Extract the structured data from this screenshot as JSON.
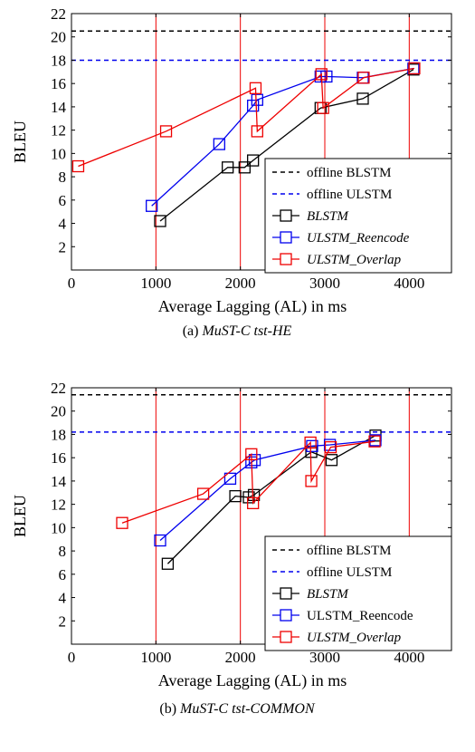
{
  "chart_data": [
    {
      "type": "line",
      "caption_prefix": "(a) ",
      "caption": "MuST-C tst-HE",
      "xlabel": "Average Lagging (AL) in ms",
      "ylabel": "BLEU",
      "xlim": [
        0,
        4500
      ],
      "ylim": [
        0,
        22
      ],
      "xticks": [
        0,
        1000,
        2000,
        3000,
        4000
      ],
      "yticks": [
        2,
        4,
        6,
        8,
        10,
        12,
        14,
        16,
        18,
        20,
        22
      ],
      "grid": false,
      "vertical_reference_lines_x": [
        1000,
        2000,
        3000,
        4000
      ],
      "legend_position": "bottom-right",
      "reference_lines": [
        {
          "name": "offline BLSTM",
          "y": 20.5,
          "color": "#000000",
          "dash": true
        },
        {
          "name": "offline ULSTM",
          "y": 18.0,
          "color": "#0000ee",
          "dash": true
        }
      ],
      "series": [
        {
          "name": "BLSTM",
          "italic": true,
          "color": "#000000",
          "x": [
            1050,
            1850,
            2050,
            2150,
            2950,
            3450,
            4050
          ],
          "y": [
            4.2,
            8.8,
            8.8,
            9.4,
            13.9,
            14.7,
            17.2
          ]
        },
        {
          "name": "ULSTM_Reencode",
          "italic": true,
          "color": "#0000ee",
          "x": [
            950,
            1750,
            2150,
            2200,
            2950,
            3020,
            3450,
            4050
          ],
          "y": [
            5.5,
            10.8,
            14.1,
            14.6,
            16.6,
            16.6,
            16.5,
            17.3
          ]
        },
        {
          "name": "ULSTM_Overlap",
          "italic": true,
          "color": "#ee0000",
          "x": [
            80,
            1120,
            2180,
            2200,
            2960,
            2980,
            3460,
            4060
          ],
          "y": [
            8.9,
            11.9,
            15.6,
            11.9,
            16.8,
            13.9,
            16.5,
            17.3
          ]
        }
      ]
    },
    {
      "type": "line",
      "caption_prefix": "(b) ",
      "caption": "MuST-C tst-COMMON",
      "xlabel": "Average Lagging (AL) in ms",
      "ylabel": "BLEU",
      "xlim": [
        0,
        4500
      ],
      "ylim": [
        0,
        22
      ],
      "xticks": [
        0,
        1000,
        2000,
        3000,
        4000
      ],
      "yticks": [
        2,
        4,
        6,
        8,
        10,
        12,
        14,
        16,
        18,
        20,
        22
      ],
      "grid": false,
      "vertical_reference_lines_x": [
        1000,
        2000,
        3000,
        4000
      ],
      "legend_position": "bottom-right",
      "reference_lines": [
        {
          "name": "offline BLSTM",
          "y": 21.4,
          "color": "#000000",
          "dash": true
        },
        {
          "name": "offline ULSTM",
          "y": 18.2,
          "color": "#0000ee",
          "dash": true
        }
      ],
      "series": [
        {
          "name": "BLSTM",
          "italic": true,
          "color": "#000000",
          "x": [
            1140,
            1940,
            2100,
            2160,
            2840,
            3080,
            3600
          ],
          "y": [
            6.9,
            12.7,
            12.6,
            12.8,
            16.5,
            15.8,
            17.9
          ]
        },
        {
          "name": "ULSTM_Reencode",
          "italic": false,
          "color": "#0000ee",
          "x": [
            1050,
            1880,
            2130,
            2170,
            2850,
            3060,
            3600
          ],
          "y": [
            8.9,
            14.2,
            15.6,
            15.8,
            17.0,
            17.1,
            17.5
          ]
        },
        {
          "name": "ULSTM_Overlap",
          "italic": true,
          "color": "#ee0000",
          "x": [
            600,
            1560,
            2130,
            2150,
            2830,
            2840,
            3070,
            3590
          ],
          "y": [
            10.4,
            12.9,
            16.3,
            12.1,
            17.3,
            14.0,
            16.9,
            17.4
          ]
        }
      ]
    }
  ]
}
